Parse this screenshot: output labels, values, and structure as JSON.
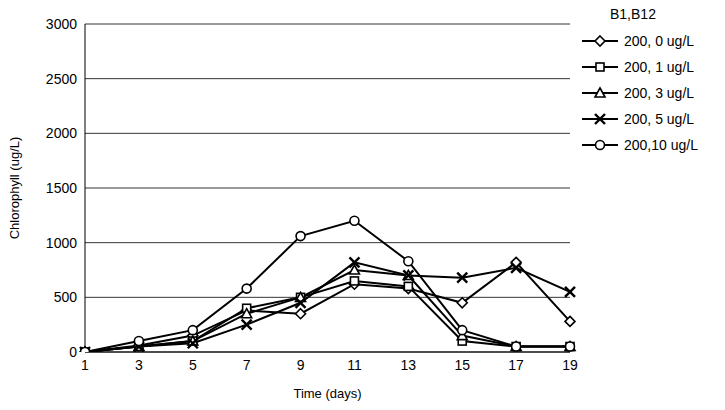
{
  "chart_data": {
    "type": "line",
    "x_label": "Time (days)",
    "y_label": "Chlorophyll (ug/L)",
    "legend_title": "B1,B12",
    "categories": [
      "1",
      "3",
      "5",
      "7",
      "9",
      "11",
      "13",
      "15",
      "17",
      "19"
    ],
    "series": [
      {
        "name": "200, 0 ug/L",
        "color": "#000000",
        "marker": "diamond",
        "values": [
          0,
          60,
          150,
          380,
          350,
          620,
          580,
          450,
          820,
          280
        ]
      },
      {
        "name": "200, 1 ug/L",
        "color": "#000000",
        "marker": "square",
        "values": [
          0,
          50,
          100,
          400,
          500,
          650,
          600,
          100,
          50,
          50
        ]
      },
      {
        "name": "200, 3 ug/L",
        "color": "#000000",
        "marker": "triangle",
        "values": [
          0,
          50,
          100,
          350,
          500,
          750,
          700,
          150,
          50,
          50
        ]
      },
      {
        "name": "200, 5 ug/L",
        "color": "#000000",
        "marker": "x",
        "values": [
          0,
          50,
          80,
          250,
          450,
          820,
          700,
          680,
          770,
          550
        ]
      },
      {
        "name": "200,10 ug/L",
        "color": "#000000",
        "marker": "circle",
        "values": [
          0,
          100,
          200,
          580,
          1060,
          1200,
          830,
          200,
          50,
          50
        ]
      }
    ],
    "ylim": [
      0,
      3000
    ],
    "yticks": [
      0,
      500,
      1000,
      1500,
      2000,
      2500,
      3000
    ],
    "grid": true,
    "legend": "top-right"
  }
}
